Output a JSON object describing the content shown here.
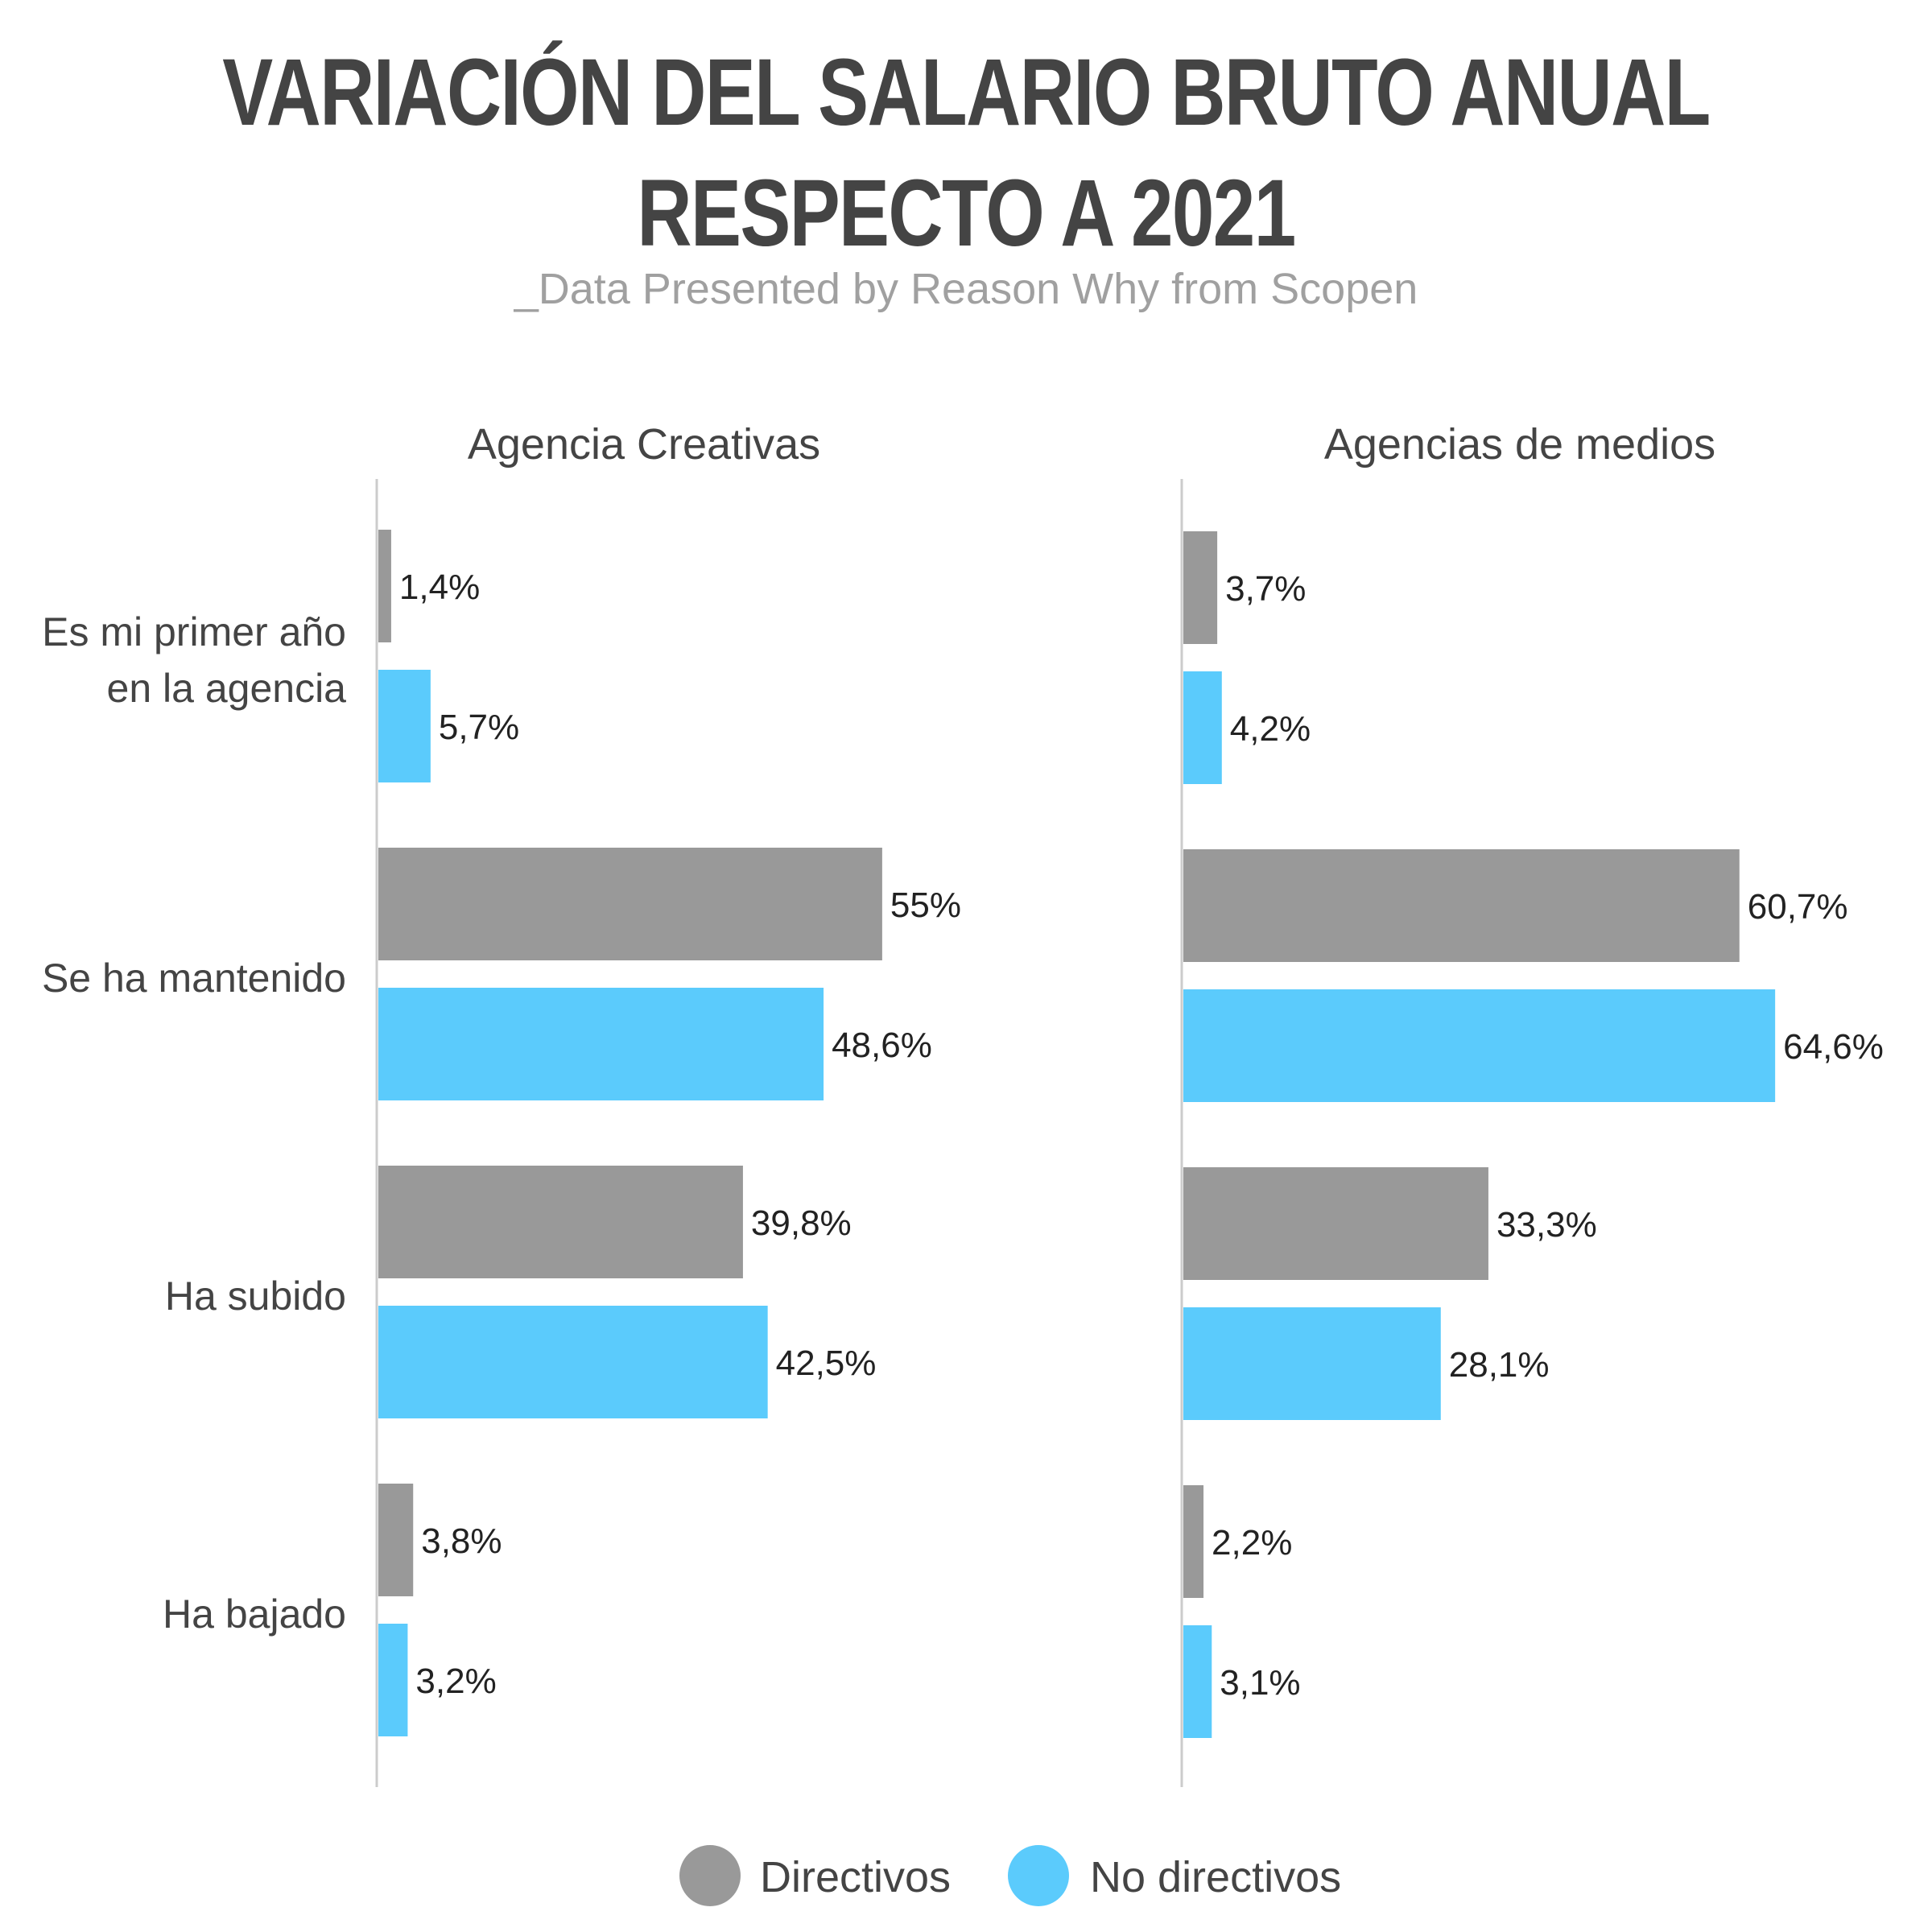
{
  "header": {
    "title_line1": "VARIACIÓN DEL SALARIO BRUTO ANUAL",
    "title_line2": "RESPECTO A 2021",
    "subtitle": "_Data Presented by Reason Why from Scopen"
  },
  "chart_data": [
    {
      "type": "bar",
      "orientation": "horizontal",
      "title": "Agencia Creativas",
      "categories": [
        [
          "Es mi primer año",
          "en la agencia"
        ],
        [
          "Se ha mantenido"
        ],
        [
          "Ha subido"
        ],
        [
          "Ha bajado"
        ]
      ],
      "series": [
        {
          "name": "Directivos",
          "values": [
            1.4,
            55,
            39.8,
            3.8
          ],
          "labels": [
            "1,4%",
            "55%",
            "39,8%",
            "3,8%"
          ]
        },
        {
          "name": "No directivos",
          "values": [
            5.7,
            48.6,
            42.5,
            3.2
          ],
          "labels": [
            "5,7%",
            "48,6%",
            "42,5%",
            "3,2%"
          ]
        }
      ],
      "xlim": [
        0,
        65
      ]
    },
    {
      "type": "bar",
      "orientation": "horizontal",
      "title": "Agencias de medios",
      "categories": [
        [
          "Es mi primer año",
          "en la agencia"
        ],
        [
          "Se ha mantenido"
        ],
        [
          "Ha subido"
        ],
        [
          "Ha bajado"
        ]
      ],
      "series": [
        {
          "name": "Directivos",
          "values": [
            3.7,
            60.7,
            33.3,
            2.2
          ],
          "labels": [
            "3,7%",
            "60,7%",
            "33,3%",
            "2,2%"
          ]
        },
        {
          "name": "No directivos",
          "values": [
            4.2,
            64.6,
            28.1,
            3.1
          ],
          "labels": [
            "4,2%",
            "64,6%",
            "28,1%",
            "3,1%"
          ]
        }
      ],
      "xlim": [
        0,
        65
      ]
    }
  ],
  "legend": {
    "position": "bottom",
    "items": [
      {
        "name": "Directivos",
        "color": "#999999"
      },
      {
        "name": "No directivos",
        "color": "#5bcbfc"
      }
    ]
  }
}
